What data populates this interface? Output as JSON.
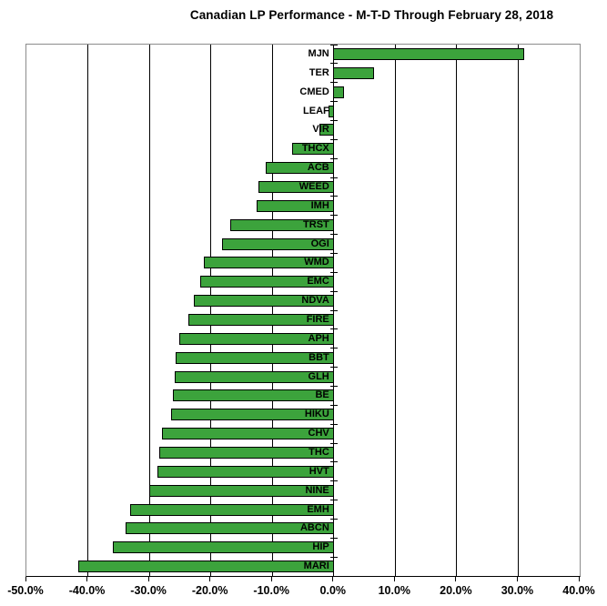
{
  "title": "Canadian LP Performance -  M-T-D Through February 28, 2018",
  "chart_data": {
    "type": "bar",
    "orientation": "horizontal",
    "title": "Canadian LP Performance -  M-T-D Through February 28, 2018",
    "categories": [
      "MJN",
      "TER",
      "CMED",
      "LEAF",
      "VIR",
      "THCX",
      "ACB",
      "WEED",
      "IMH",
      "TRST",
      "OGI",
      "WMD",
      "EMC",
      "NDVA",
      "FIRE",
      "APH",
      "BBT",
      "GLH",
      "BE",
      "HIKU",
      "CHV",
      "THC",
      "HVT",
      "NINE",
      "EMH",
      "ABCN",
      "HIP",
      "MARI"
    ],
    "values": [
      31.0,
      6.6,
      1.7,
      -0.8,
      -2.4,
      -6.8,
      -11.1,
      -12.2,
      -12.6,
      -16.8,
      -18.2,
      -21.2,
      -21.8,
      -22.7,
      -23.6,
      -25.2,
      -25.7,
      -25.9,
      -26.2,
      -26.5,
      -27.9,
      -28.4,
      -28.7,
      -30.0,
      -33.1,
      -33.9,
      -35.9,
      -41.5
    ],
    "value_unit": "percent",
    "xlabel": "",
    "ylabel": "",
    "xlim": [
      -50,
      40
    ],
    "x_tick_step": 10,
    "x_tick_labels": [
      "-50.0%",
      "-40.0%",
      "-30.0%",
      "-20.0%",
      "-10.0%",
      "0.0%",
      "10.0%",
      "20.0%",
      "30.0%",
      "40.0%"
    ],
    "grid": true,
    "legend": false,
    "bar_color": "#3ca33c",
    "bar_border_color": "#000000",
    "plot_border_color": "#8c8c8c",
    "gridline_color": "#000000"
  }
}
